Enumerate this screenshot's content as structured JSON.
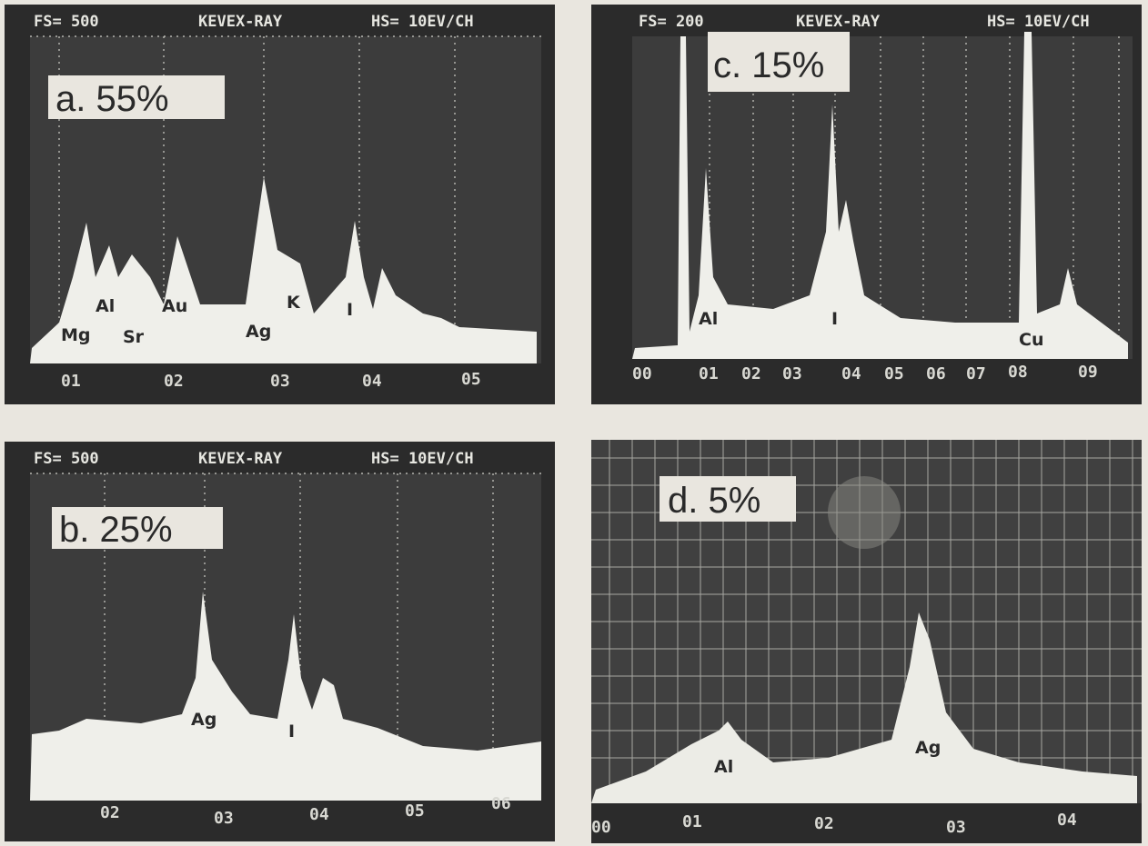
{
  "panels": [
    {
      "header": {
        "fs": "FS= 500",
        "title": "KEVEX-RAY",
        "hs": "HS= 10EV/CH"
      },
      "label": "a. 55%",
      "peaks": [
        "Mg",
        "Al",
        "Sr",
        "Au",
        "Ag",
        "K",
        "I"
      ],
      "axis": [
        "01",
        "02",
        "03",
        "04",
        "05"
      ]
    },
    {
      "header": {
        "fs": "FS= 200",
        "title": "KEVEX-RAY",
        "hs": "HS= 10EV/CH"
      },
      "label": "c. 15%",
      "peaks": [
        "Al",
        "I",
        "Cu"
      ],
      "axis": [
        "00",
        "01",
        "02",
        "03",
        "04",
        "05",
        "06",
        "07",
        "08",
        "09"
      ]
    },
    {
      "header": {
        "fs": "FS= 500",
        "title": "KEVEX-RAY",
        "hs": "HS= 10EV/CH"
      },
      "label": "b. 25%",
      "peaks": [
        "Ag",
        "I"
      ],
      "axis": [
        "02",
        "03",
        "04",
        "05",
        "06"
      ]
    },
    {
      "label": "d. 5%",
      "peaks": [
        "Al",
        "Ag"
      ],
      "axis": [
        "00",
        "01",
        "02",
        "03",
        "04"
      ]
    }
  ]
}
